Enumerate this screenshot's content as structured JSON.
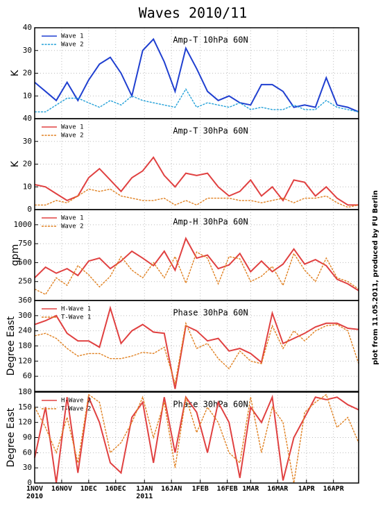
{
  "title": "Waves 2010/11",
  "note": "plot from 11.05.2011, produced by FU Berlin",
  "chart_data": [
    {
      "type": "line",
      "title": "Amp-T 10hPa 60N",
      "y_label": "K",
      "x": [
        "2010-11-01",
        "2010-11-07",
        "2010-11-13",
        "2010-11-19",
        "2010-11-25",
        "2010-12-01",
        "2010-12-07",
        "2010-12-13",
        "2010-12-19",
        "2010-12-25",
        "2010-12-31",
        "2011-01-06",
        "2011-01-12",
        "2011-01-18",
        "2011-01-24",
        "2011-01-30",
        "2011-02-05",
        "2011-02-11",
        "2011-02-17",
        "2011-02-23",
        "2011-03-01",
        "2011-03-07",
        "2011-03-13",
        "2011-03-19",
        "2011-03-25",
        "2011-03-31",
        "2011-04-06",
        "2011-04-12",
        "2011-04-18",
        "2011-04-24",
        "2011-04-30"
      ],
      "xlim": [
        "2010-11-01",
        "2011-04-30"
      ],
      "ylim": [
        0,
        40
      ],
      "yticks": [
        10,
        20,
        30,
        40
      ],
      "grid": true,
      "legend": "upper left",
      "series": [
        {
          "name": "Wave 1",
          "color": "#1f3fd0",
          "style": "solid",
          "values": [
            16,
            12,
            8,
            16,
            8,
            17,
            24,
            27,
            20,
            10,
            30,
            35,
            25,
            12,
            31,
            22,
            12,
            8,
            10,
            7,
            6,
            15,
            15,
            12,
            5,
            6,
            5,
            18,
            6,
            5,
            3
          ]
        },
        {
          "name": "Wave 2",
          "color": "#22a0d8",
          "style": "dashed",
          "values": [
            3,
            3,
            6,
            9,
            9,
            7,
            5,
            8,
            6,
            10,
            8,
            7,
            6,
            5,
            13,
            5,
            7,
            6,
            5,
            7,
            4,
            5,
            4,
            4,
            6,
            4,
            4,
            8,
            5,
            4,
            3
          ]
        }
      ]
    },
    {
      "type": "line",
      "title": "Amp-T 30hPa 60N",
      "y_label": "K",
      "x": [
        "2010-11-01",
        "2010-11-07",
        "2010-11-13",
        "2010-11-19",
        "2010-11-25",
        "2010-12-01",
        "2010-12-07",
        "2010-12-13",
        "2010-12-19",
        "2010-12-25",
        "2010-12-31",
        "2011-01-06",
        "2011-01-12",
        "2011-01-18",
        "2011-01-24",
        "2011-01-30",
        "2011-02-05",
        "2011-02-11",
        "2011-02-17",
        "2011-02-23",
        "2011-03-01",
        "2011-03-07",
        "2011-03-13",
        "2011-03-19",
        "2011-03-25",
        "2011-03-31",
        "2011-04-06",
        "2011-04-12",
        "2011-04-18",
        "2011-04-24",
        "2011-04-30"
      ],
      "xlim": [
        "2010-11-01",
        "2011-04-30"
      ],
      "ylim": [
        0,
        40
      ],
      "yticks": [
        0,
        10,
        20,
        30,
        40
      ],
      "grid": true,
      "legend": "upper left",
      "series": [
        {
          "name": "Wave 1",
          "color": "#e04040",
          "style": "solid",
          "values": [
            11,
            10,
            7,
            4,
            6,
            14,
            18,
            13,
            8,
            14,
            17,
            23,
            15,
            10,
            16,
            15,
            16,
            10,
            6,
            8,
            13,
            6,
            10,
            4,
            13,
            12,
            6,
            10,
            5,
            2,
            2
          ]
        },
        {
          "name": "Wave 2",
          "color": "#e08020",
          "style": "dashed",
          "values": [
            2,
            2,
            4,
            3,
            6,
            9,
            8,
            9,
            6,
            5,
            4,
            4,
            5,
            2,
            4,
            2,
            5,
            5,
            5,
            4,
            4,
            3,
            4,
            5,
            3,
            5,
            5,
            6,
            3,
            1,
            2
          ]
        }
      ]
    },
    {
      "type": "line",
      "title": "Amp-H 30hPa 60N",
      "y_label": "gpm",
      "x": [
        "2010-11-01",
        "2010-11-07",
        "2010-11-13",
        "2010-11-19",
        "2010-11-25",
        "2010-12-01",
        "2010-12-07",
        "2010-12-13",
        "2010-12-19",
        "2010-12-25",
        "2010-12-31",
        "2011-01-06",
        "2011-01-12",
        "2011-01-18",
        "2011-01-24",
        "2011-01-30",
        "2011-02-05",
        "2011-02-11",
        "2011-02-17",
        "2011-02-23",
        "2011-03-01",
        "2011-03-07",
        "2011-03-13",
        "2011-03-19",
        "2011-03-25",
        "2011-03-31",
        "2011-04-06",
        "2011-04-12",
        "2011-04-18",
        "2011-04-24",
        "2011-04-30"
      ],
      "xlim": [
        "2010-11-01",
        "2011-04-30"
      ],
      "ylim": [
        0,
        1200
      ],
      "yticks": [
        250,
        500,
        750,
        1000
      ],
      "grid": true,
      "legend": "upper left",
      "series": [
        {
          "name": "Wave 1",
          "color": "#e04040",
          "style": "solid",
          "values": [
            300,
            440,
            360,
            420,
            330,
            520,
            560,
            420,
            520,
            650,
            560,
            460,
            650,
            400,
            820,
            560,
            600,
            420,
            470,
            620,
            380,
            520,
            380,
            480,
            680,
            480,
            540,
            460,
            280,
            220,
            130
          ]
        },
        {
          "name": "Wave 2",
          "color": "#e08020",
          "style": "dashed",
          "values": [
            150,
            80,
            300,
            200,
            460,
            340,
            180,
            320,
            580,
            400,
            300,
            500,
            300,
            580,
            230,
            640,
            560,
            220,
            580,
            550,
            250,
            320,
            450,
            200,
            620,
            400,
            250,
            560,
            300,
            250,
            150
          ]
        }
      ]
    },
    {
      "type": "line",
      "title": "Phase 30hPa 60N",
      "y_label": "Degree East",
      "x": [
        "2010-11-01",
        "2010-11-07",
        "2010-11-13",
        "2010-11-19",
        "2010-11-25",
        "2010-12-01",
        "2010-12-07",
        "2010-12-13",
        "2010-12-19",
        "2010-12-25",
        "2010-12-31",
        "2011-01-06",
        "2011-01-12",
        "2011-01-18",
        "2011-01-24",
        "2011-01-30",
        "2011-02-05",
        "2011-02-11",
        "2011-02-17",
        "2011-02-23",
        "2011-03-01",
        "2011-03-07",
        "2011-03-13",
        "2011-03-19",
        "2011-03-25",
        "2011-03-31",
        "2011-04-06",
        "2011-04-12",
        "2011-04-18",
        "2011-04-24",
        "2011-04-30"
      ],
      "xlim": [
        "2010-11-01",
        "2011-04-30"
      ],
      "ylim": [
        0,
        360
      ],
      "yticks": [
        60,
        120,
        180,
        240,
        300,
        360
      ],
      "grid": true,
      "legend": "upper left",
      "series": [
        {
          "name": "H-Wave 1",
          "color": "#e04040",
          "style": "solid",
          "values": [
            265,
            280,
            300,
            230,
            200,
            200,
            175,
            330,
            190,
            240,
            265,
            235,
            230,
            10,
            260,
            240,
            200,
            210,
            160,
            170,
            150,
            115,
            310,
            190,
            210,
            230,
            255,
            270,
            270,
            250,
            245
          ]
        },
        {
          "name": "T-Wave 1",
          "color": "#e08020",
          "style": "dashed",
          "values": [
            220,
            230,
            210,
            170,
            140,
            150,
            150,
            130,
            130,
            140,
            155,
            150,
            175,
            30,
            270,
            170,
            190,
            130,
            90,
            160,
            120,
            110,
            260,
            170,
            240,
            200,
            240,
            260,
            265,
            240,
            110
          ]
        }
      ]
    },
    {
      "type": "line",
      "title": "Phase 30hPa 60N",
      "y_label": "Degree East",
      "x": [
        "2010-11-01",
        "2010-11-07",
        "2010-11-13",
        "2010-11-19",
        "2010-11-25",
        "2010-12-01",
        "2010-12-07",
        "2010-12-13",
        "2010-12-19",
        "2010-12-25",
        "2010-12-31",
        "2011-01-06",
        "2011-01-12",
        "2011-01-18",
        "2011-01-24",
        "2011-01-30",
        "2011-02-05",
        "2011-02-11",
        "2011-02-17",
        "2011-02-23",
        "2011-03-01",
        "2011-03-07",
        "2011-03-13",
        "2011-03-19",
        "2011-03-25",
        "2011-03-31",
        "2011-04-06",
        "2011-04-12",
        "2011-04-18",
        "2011-04-24",
        "2011-04-30"
      ],
      "xlim": [
        "2010-11-01",
        "2011-04-30"
      ],
      "ylim": [
        0,
        180
      ],
      "yticks": [
        0,
        30,
        60,
        90,
        120,
        150,
        180
      ],
      "grid": true,
      "legend": "upper left",
      "xticks": [
        {
          "value": "2010-11-01",
          "label": "1NOV 2010"
        },
        {
          "value": "2010-11-16",
          "label": "16NOV"
        },
        {
          "value": "2010-12-01",
          "label": "1DEC"
        },
        {
          "value": "2010-12-16",
          "label": "16DEC"
        },
        {
          "value": "2011-01-01",
          "label": "1JAN 2011"
        },
        {
          "value": "2011-01-16",
          "label": "16JAN"
        },
        {
          "value": "2011-02-01",
          "label": "1FEB"
        },
        {
          "value": "2011-02-16",
          "label": "16FEB"
        },
        {
          "value": "2011-03-01",
          "label": "1MAR"
        },
        {
          "value": "2011-03-16",
          "label": "16MAR"
        },
        {
          "value": "2011-04-01",
          "label": "1APR"
        },
        {
          "value": "2011-04-16",
          "label": "16APR"
        }
      ],
      "series": [
        {
          "name": "H-Wave 2",
          "color": "#e04040",
          "style": "solid",
          "values": [
            50,
            150,
            0,
            170,
            20,
            170,
            120,
            40,
            20,
            130,
            160,
            40,
            170,
            60,
            170,
            140,
            60,
            160,
            120,
            10,
            150,
            120,
            170,
            5,
            90,
            130,
            170,
            165,
            170,
            155,
            145
          ]
        },
        {
          "name": "T-Wave 2",
          "color": "#e08020",
          "style": "dashed",
          "values": [
            150,
            110,
            60,
            130,
            40,
            175,
            160,
            60,
            80,
            120,
            170,
            90,
            160,
            30,
            170,
            100,
            150,
            120,
            60,
            40,
            170,
            60,
            150,
            120,
            0,
            140,
            160,
            175,
            110,
            130,
            80
          ]
        }
      ]
    }
  ]
}
